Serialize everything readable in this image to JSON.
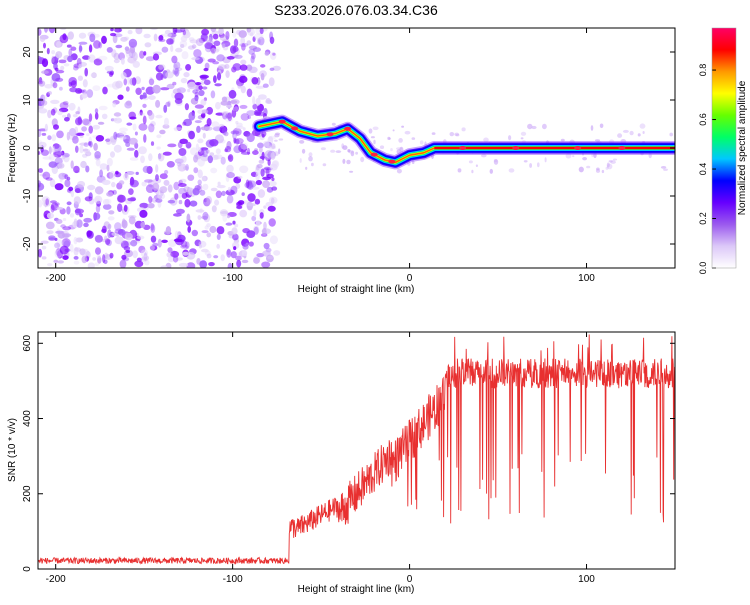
{
  "title": "S233.2026.076.03.34.C36",
  "chart_data": [
    {
      "type": "heatmap",
      "xlabel": "Height of straight line (km)",
      "ylabel": "Frequency (Hz)",
      "xlim": [
        -210,
        150
      ],
      "ylim": [
        -25,
        25
      ],
      "xticks": [
        -200,
        -100,
        0,
        100
      ],
      "yticks": [
        -20,
        -10,
        0,
        10,
        20
      ],
      "noise_region_x": [
        -210,
        -75
      ],
      "trace_center": [
        {
          "x": -85,
          "y": 4.5
        },
        {
          "x": -72,
          "y": 5.5
        },
        {
          "x": -62,
          "y": 3.5
        },
        {
          "x": -52,
          "y": 2.5
        },
        {
          "x": -42,
          "y": 3.0
        },
        {
          "x": -35,
          "y": 4.0
        },
        {
          "x": -28,
          "y": 2.0
        },
        {
          "x": -22,
          "y": -1.0
        },
        {
          "x": -14,
          "y": -2.5
        },
        {
          "x": -8,
          "y": -3.0
        },
        {
          "x": 0,
          "y": -1.5
        },
        {
          "x": 8,
          "y": -1.0
        },
        {
          "x": 14,
          "y": 0.0
        },
        {
          "x": 150,
          "y": 0.0
        }
      ],
      "colorbar": {
        "label": "Normalized spectral amplitude",
        "ticks": [
          0.0,
          0.2,
          0.4,
          0.6,
          0.8
        ],
        "range": [
          0.0,
          0.97
        ],
        "colors": [
          "#ffffff",
          "#dcc8f8",
          "#9b59ee",
          "#6600ff",
          "#0000ff",
          "#00c8ff",
          "#00ff66",
          "#66ff00",
          "#ffff00",
          "#ff9900",
          "#ff0000",
          "#ff0066"
        ]
      }
    },
    {
      "type": "line",
      "xlabel": "Height of straight line (km)",
      "ylabel": "SNR (10 * v/v)",
      "xlim": [
        -210,
        150
      ],
      "ylim": [
        0,
        630
      ],
      "xticks": [
        -200,
        -100,
        0,
        100
      ],
      "yticks": [
        0,
        200,
        400,
        600
      ],
      "color": "#e83030",
      "segments": [
        {
          "x0": -210,
          "x1": -68,
          "mean": 22,
          "noise": 8
        },
        {
          "x0": -68,
          "x1": -64,
          "mean": 110,
          "noise": 30
        },
        {
          "x0": -64,
          "x1": -40,
          "mean": 100,
          "noise": 30
        },
        {
          "x0": -40,
          "x1": -10,
          "mean": 215,
          "noise": 55
        },
        {
          "x0": -10,
          "x1": 20,
          "mean": 370,
          "noise": 60
        },
        {
          "x0": 20,
          "x1": 150,
          "mean": 520,
          "noise": 40
        }
      ],
      "dropout_values": [
        130,
        160,
        200,
        250,
        300
      ]
    }
  ]
}
